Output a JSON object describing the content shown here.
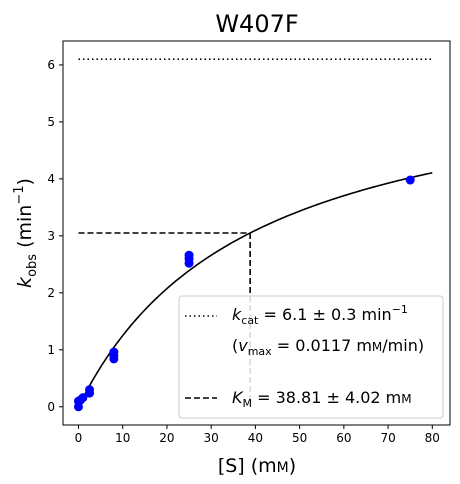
{
  "chart_data": {
    "type": "scatter",
    "title": "W407F",
    "xlabel": {
      "main": "[S] (mm)",
      "display_pre": "[S] (m",
      "display_post": ")"
    },
    "ylabel": {
      "base": "k",
      "sub": "obs",
      "unit_pre": " (min",
      "unit_sup": "−1",
      "unit_post": ")"
    },
    "xlim": [
      -3.5,
      84
    ],
    "ylim": [
      -0.32,
      6.42
    ],
    "xticks": [
      0,
      10,
      20,
      30,
      40,
      50,
      60,
      70,
      80
    ],
    "yticks": [
      0,
      1,
      2,
      3,
      4,
      5,
      6
    ],
    "grid": false,
    "legend_position": "lower right",
    "series": [
      {
        "kind": "points",
        "color": "#0000ff",
        "x": [
          0,
          0,
          0.5,
          1,
          2.5,
          2.5,
          8,
          8,
          8,
          25,
          25,
          25,
          75
        ],
        "y": [
          0.0,
          0.1,
          0.12,
          0.16,
          0.24,
          0.3,
          0.84,
          0.9,
          0.96,
          2.52,
          2.6,
          2.66,
          3.98
        ]
      },
      {
        "kind": "fit",
        "color": "#000000",
        "model": "michaelis-menten",
        "kcat": 6.1,
        "km": 38.81,
        "x_range": [
          0,
          80
        ]
      }
    ],
    "annotations": {
      "kcat_line": {
        "y": 6.1,
        "x_range": [
          0,
          80
        ],
        "style": "dotted"
      },
      "km_line": {
        "x": 38.81,
        "y": 3.05,
        "style": "dashed"
      }
    },
    "legend": [
      {
        "style": "dotted",
        "k": "k",
        "sub": "cat",
        "rest": " = 6.1 ± 0.3 min",
        "sup": "−1"
      },
      {
        "style": "none",
        "pre": "(",
        "v": "v",
        "sub": "max",
        "rest": " = 0.0117 m",
        "tail": "/min)"
      },
      {
        "style": "dashed",
        "k": "K",
        "sub": "M",
        "rest": " = 38.81 ± 4.02 m"
      }
    ]
  }
}
